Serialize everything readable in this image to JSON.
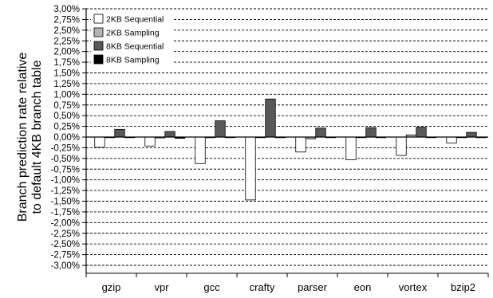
{
  "chart_data": {
    "type": "bar",
    "title": "",
    "xlabel": "",
    "ylabel": [
      "Branch prediction rate relative",
      "to default 4KB branch table"
    ],
    "categories": [
      "gzip",
      "vpr",
      "gcc",
      "crafty",
      "parser",
      "eon",
      "vortex",
      "bzip2"
    ],
    "ylim": [
      -3.0,
      3.0
    ],
    "ytick_step": 0.25,
    "yticks": [
      "3,00%",
      "2,75%",
      "2,50%",
      "2,25%",
      "2,00%",
      "1,75%",
      "1,50%",
      "1,25%",
      "1,00%",
      "0,75%",
      "0,50%",
      "0,25%",
      "0,00%",
      "-0,25%",
      "-0,50%",
      "-0,75%",
      "-1,00%",
      "-1,25%",
      "-1,50%",
      "-1,75%",
      "-2,00%",
      "-2,25%",
      "-2,50%",
      "-2,75%",
      "-3,00%"
    ],
    "grid": "horizontal dashed",
    "legend_position": "top-left",
    "series": [
      {
        "name": "2KB Sequential",
        "color": "#ffffff",
        "values": [
          -0.24,
          -0.21,
          -0.62,
          -1.47,
          -0.35,
          -0.53,
          -0.43,
          -0.14
        ]
      },
      {
        "name": "2KB Sampling",
        "color": "#b3b3b3",
        "values": [
          -0.01,
          -0.02,
          -0.01,
          -0.01,
          -0.04,
          -0.01,
          0.05,
          -0.01
        ]
      },
      {
        "name": "8KB Sequential",
        "color": "#595959",
        "values": [
          0.18,
          0.13,
          0.38,
          0.89,
          0.21,
          0.22,
          0.23,
          0.11
        ]
      },
      {
        "name": "8KB Sampling",
        "color": "#000000",
        "values": [
          0.0,
          -0.03,
          0.0,
          0.0,
          0.0,
          0.0,
          0.0,
          0.0
        ]
      }
    ]
  }
}
